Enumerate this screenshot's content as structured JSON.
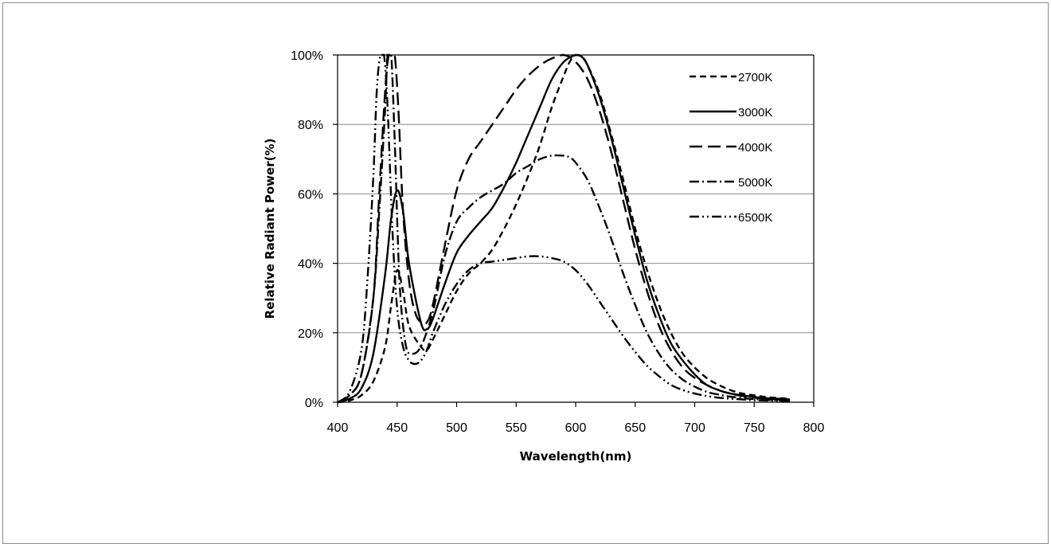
{
  "chart_data": {
    "type": "line",
    "title": "",
    "xlabel": "Wavelength(nm)",
    "ylabel": "Relative Radiant Power(%)",
    "xlim": [
      400,
      800
    ],
    "ylim": [
      0,
      100
    ],
    "xticks": [
      400,
      450,
      500,
      550,
      600,
      650,
      700,
      750,
      800
    ],
    "yticks": [
      0,
      20,
      40,
      60,
      80,
      100
    ],
    "ytick_labels": [
      "0%",
      "20%",
      "40%",
      "60%",
      "80%",
      "100%"
    ],
    "grid": "horizontal",
    "legend_position": "top-right",
    "series": [
      {
        "name": "2700K",
        "dash": "8,5",
        "x": [
          400,
          410,
          420,
          430,
          440,
          445,
          450,
          455,
          460,
          470,
          475,
          480,
          490,
          500,
          510,
          520,
          530,
          540,
          550,
          560,
          570,
          580,
          590,
          595,
          600,
          605,
          610,
          620,
          630,
          640,
          650,
          660,
          670,
          680,
          690,
          700,
          710,
          720,
          730,
          740,
          750,
          760,
          770,
          780
        ],
        "y": [
          0,
          0.5,
          2,
          6,
          16,
          28,
          38,
          32,
          22,
          16,
          15,
          18,
          25,
          32,
          37,
          40,
          44,
          50,
          57,
          65,
          74,
          85,
          94,
          98,
          100,
          99.5,
          97,
          89,
          77,
          64,
          50,
          38,
          28,
          20,
          14,
          10,
          7,
          5,
          3.5,
          2.5,
          2,
          1.5,
          1.2,
          1
        ]
      },
      {
        "name": "3000K",
        "dash": "",
        "x": [
          400,
          410,
          420,
          430,
          440,
          445,
          450,
          455,
          460,
          470,
          475,
          480,
          490,
          500,
          510,
          520,
          530,
          540,
          550,
          560,
          570,
          580,
          590,
          600,
          605,
          610,
          620,
          630,
          640,
          650,
          660,
          670,
          680,
          690,
          700,
          710,
          720,
          730,
          740,
          750,
          760,
          770,
          780
        ],
        "y": [
          0,
          1,
          4,
          14,
          37,
          53,
          61,
          55,
          40,
          23,
          21,
          24,
          34,
          43,
          48,
          52,
          56,
          62,
          69,
          77,
          85,
          93,
          98,
          100,
          99.5,
          97,
          88,
          76,
          62,
          48,
          35,
          25,
          17,
          12,
          8,
          5,
          3.5,
          2.5,
          2,
          1.5,
          1.2,
          1,
          0.8
        ]
      },
      {
        "name": "4000K",
        "dash": "16,7",
        "x": [
          400,
          410,
          420,
          430,
          435,
          440,
          443,
          446,
          448,
          451,
          455,
          460,
          465,
          470,
          475,
          480,
          490,
          500,
          510,
          520,
          530,
          540,
          550,
          560,
          570,
          580,
          590,
          600,
          610,
          620,
          630,
          640,
          650,
          660,
          670,
          680,
          690,
          700,
          710,
          720,
          730,
          740,
          750,
          760,
          770,
          780
        ],
        "y": [
          0,
          2,
          8,
          30,
          60,
          90,
          100,
          100,
          100,
          85,
          55,
          35,
          26,
          23,
          23,
          28,
          45,
          61,
          70,
          75,
          80,
          85,
          90,
          94,
          97,
          99,
          100,
          98,
          93,
          84,
          72,
          58,
          44,
          32,
          22,
          15,
          10,
          7,
          5,
          3.5,
          2.5,
          1.8,
          1.3,
          1,
          0.8,
          0.6
        ]
      },
      {
        "name": "5000K",
        "dash": "12,4,2,4",
        "x": [
          400,
          410,
          420,
          430,
          435,
          440,
          442,
          445,
          448,
          452,
          457,
          462,
          470,
          480,
          490,
          500,
          510,
          520,
          530,
          540,
          550,
          560,
          570,
          580,
          590,
          595,
          600,
          610,
          620,
          630,
          640,
          650,
          660,
          670,
          680,
          690,
          700,
          710,
          720,
          730,
          740,
          750,
          760,
          770,
          780
        ],
        "y": [
          0,
          2,
          8,
          30,
          55,
          85,
          100,
          100,
          75,
          35,
          17,
          14,
          16,
          26,
          42,
          52,
          56,
          59,
          61,
          63,
          66,
          68,
          70,
          71,
          71,
          70.5,
          69,
          64,
          56,
          47,
          37,
          28,
          20,
          14,
          9.5,
          6.5,
          4.5,
          3,
          2.2,
          1.6,
          1.2,
          0.9,
          0.7,
          0.5,
          0.4
        ]
      },
      {
        "name": "6500K",
        "dash": "12,4,2,4,2,4",
        "x": [
          400,
          410,
          420,
          425,
          430,
          433,
          436,
          439,
          442,
          446,
          450,
          455,
          460,
          465,
          470,
          475,
          480,
          490,
          500,
          510,
          520,
          530,
          540,
          550,
          560,
          570,
          580,
          590,
          600,
          610,
          620,
          630,
          640,
          650,
          660,
          670,
          680,
          690,
          700,
          710,
          720,
          730,
          740,
          750,
          760,
          770,
          780
        ],
        "y": [
          0,
          3,
          15,
          35,
          65,
          90,
          100,
          100,
          85,
          50,
          27,
          16,
          12,
          11,
          12,
          15,
          20,
          28,
          34,
          38,
          40,
          40.5,
          41,
          41.5,
          42,
          42,
          41.5,
          40.5,
          38,
          34,
          29,
          24,
          19,
          14.5,
          10.5,
          7.5,
          5,
          3.5,
          2.5,
          1.8,
          1.3,
          1,
          0.8,
          0.6,
          0.5,
          0.4,
          0.3
        ]
      }
    ]
  }
}
